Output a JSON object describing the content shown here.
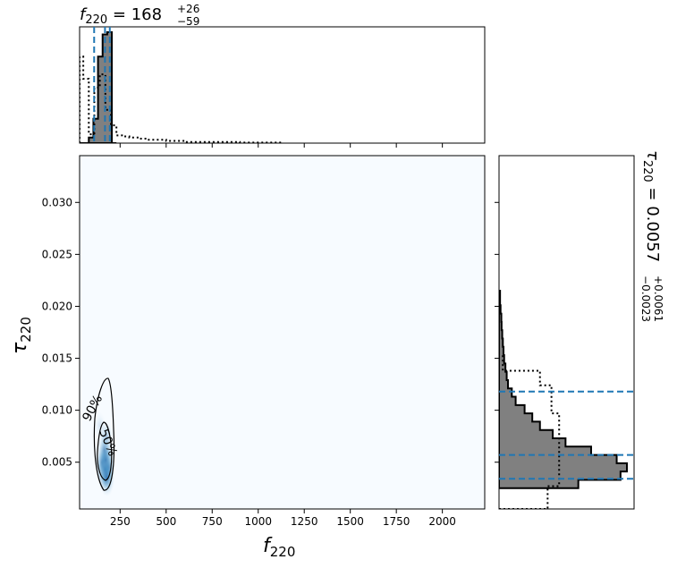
{
  "chart_data": {
    "type": "corner",
    "top_title": {
      "param": "f",
      "param_sub": "220",
      "value": "168",
      "plus": "+26",
      "minus": "−59"
    },
    "right_title": {
      "param": "τ",
      "param_sub": "220",
      "value": "0.0057",
      "plus": "+0.0061",
      "minus": "−0.0023"
    },
    "xlabel": {
      "sym": "f",
      "sub": "220"
    },
    "ylabel": {
      "sym": "τ",
      "sub": "220"
    },
    "xlim": [
      30,
      2230
    ],
    "ylim": [
      0.0005,
      0.0345
    ],
    "xticks": [
      250,
      500,
      750,
      1000,
      1250,
      1500,
      1750,
      2000
    ],
    "yticks": [
      0.005,
      0.01,
      0.015,
      0.02,
      0.025,
      0.03
    ],
    "ytick_labels": [
      "0.005",
      "0.010",
      "0.015",
      "0.020",
      "0.025",
      "0.030"
    ],
    "f_quantiles": [
      109,
      168,
      194
    ],
    "tau_quantiles": [
      0.0034,
      0.0057,
      0.0118
    ],
    "contour_labels": [
      "90%",
      "50%"
    ],
    "hist_f": {
      "bin_edges": [
        30,
        55,
        80,
        105,
        130,
        155,
        180,
        205,
        230
      ],
      "counts": [
        0,
        0,
        0.05,
        0.22,
        0.78,
        0.98,
        1.0,
        0
      ]
    },
    "hist_f_prior": {
      "bin_edges": [
        30,
        50,
        80,
        110,
        140,
        170,
        200,
        230,
        260,
        300,
        350,
        400,
        450,
        500,
        550,
        600,
        700,
        800,
        900,
        1000,
        1130
      ],
      "counts": [
        0.78,
        0.58,
        0.08,
        0.5,
        0.62,
        0.3,
        0.16,
        0.07,
        0.06,
        0.05,
        0.04,
        0.03,
        0.03,
        0.02,
        0.02,
        0.01,
        0.01,
        0.01,
        0.005,
        0.005
      ]
    },
    "hist_tau": {
      "bin_edges": [
        0.0025,
        0.0033,
        0.0041,
        0.0049,
        0.0057,
        0.0065,
        0.0073,
        0.0081,
        0.0089,
        0.0097,
        0.0105,
        0.0113,
        0.0121,
        0.0129,
        0.0137,
        0.0145,
        0.0153,
        0.0161,
        0.0169,
        0.0177,
        0.0185,
        0.0193,
        0.0201,
        0.0215
      ],
      "counts": [
        0.62,
        0.95,
        1.0,
        0.92,
        0.72,
        0.52,
        0.42,
        0.32,
        0.26,
        0.2,
        0.13,
        0.1,
        0.07,
        0.06,
        0.05,
        0.04,
        0.035,
        0.03,
        0.025,
        0.02,
        0.018,
        0.012,
        0.008
      ]
    },
    "hist_tau_prior": {
      "bin_edges": [
        0.0005,
        0.0027,
        0.0041,
        0.007,
        0.0097,
        0.0124,
        0.0138,
        0.0152
      ],
      "counts": [
        0.38,
        0.47,
        0.47,
        0.47,
        0.41,
        0.32,
        0.03
      ]
    },
    "density_points": [
      {
        "f": 168,
        "tau": 0.0043,
        "w": 1.0
      },
      {
        "f": 172,
        "tau": 0.0052,
        "w": 0.8
      },
      {
        "f": 178,
        "tau": 0.0035,
        "w": 0.7
      },
      {
        "f": 165,
        "tau": 0.0062,
        "w": 0.55
      },
      {
        "f": 175,
        "tau": 0.0075,
        "w": 0.35
      },
      {
        "f": 150,
        "tau": 0.005,
        "w": 0.35
      },
      {
        "f": 190,
        "tau": 0.0045,
        "w": 0.3
      },
      {
        "f": 140,
        "tau": 0.0085,
        "w": 0.15
      }
    ],
    "grid": false,
    "colors": {
      "filled_hist": "#808080",
      "quantile_line": "#1f77b4",
      "density": "#08519c",
      "outline": "#000000"
    }
  }
}
